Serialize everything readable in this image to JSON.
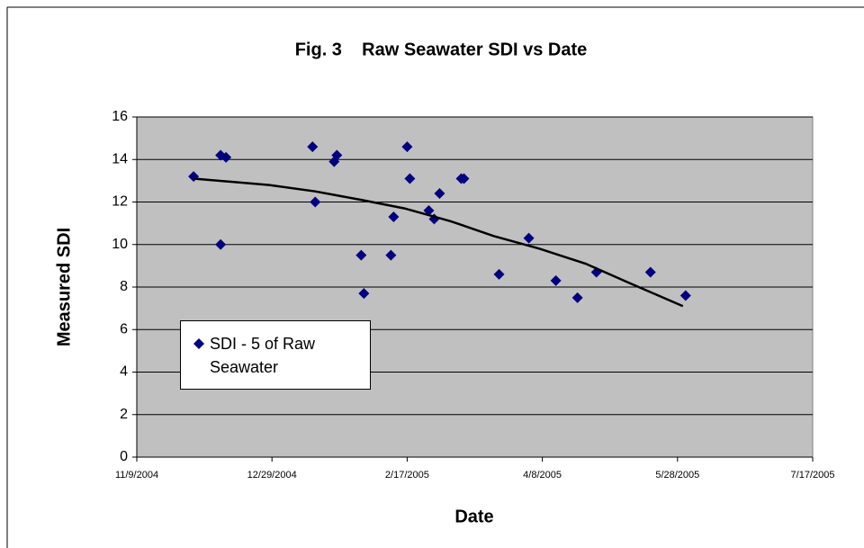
{
  "chart_data": {
    "type": "scatter",
    "title": "Fig. 3    Raw Seawater SDI vs Date",
    "x_label": "Date",
    "y_label": "Measured SDI",
    "series": [
      {
        "name": "SDI - 5 of Raw Seawater",
        "color": "#000080",
        "x": [
          38321,
          38331,
          38331,
          38333,
          38365,
          38366,
          38373,
          38374,
          38383,
          38384,
          38394,
          38395,
          38400,
          38401,
          38408,
          38410,
          38412,
          38420,
          38421,
          38434,
          38445,
          38455,
          38463,
          38470,
          38490,
          38503
        ],
        "values": [
          13.2,
          10.0,
          14.2,
          14.1,
          14.6,
          12.0,
          13.9,
          14.2,
          9.5,
          7.7,
          9.5,
          11.3,
          14.6,
          13.1,
          11.6,
          11.2,
          12.4,
          13.1,
          13.1,
          8.6,
          10.3,
          8.3,
          7.5,
          8.7,
          8.7,
          7.6
        ]
      }
    ],
    "trendline": {
      "color": "#000000",
      "x": [
        38321,
        38349,
        38366,
        38383,
        38399,
        38416,
        38432,
        38449,
        38466,
        38482,
        38502
      ],
      "values": [
        13.1,
        12.8,
        12.5,
        12.1,
        11.7,
        11.1,
        10.4,
        9.8,
        9.1,
        8.2,
        7.1
      ]
    },
    "xlim": [
      38300,
      38550
    ],
    "xticks": [
      {
        "value": 38300,
        "label": "11/9/2004"
      },
      {
        "value": 38350,
        "label": "12/29/2004"
      },
      {
        "value": 38400,
        "label": "2/17/2005"
      },
      {
        "value": 38450,
        "label": "4/8/2005"
      },
      {
        "value": 38500,
        "label": "5/28/2005"
      },
      {
        "value": 38550,
        "label": "7/17/2005"
      }
    ],
    "ylim": [
      0,
      16
    ],
    "yticks": [
      0,
      2,
      4,
      6,
      8,
      10,
      12,
      14,
      16
    ],
    "grid": true,
    "plot_background": "#c0c0c0",
    "legend_position": "lower-left"
  }
}
